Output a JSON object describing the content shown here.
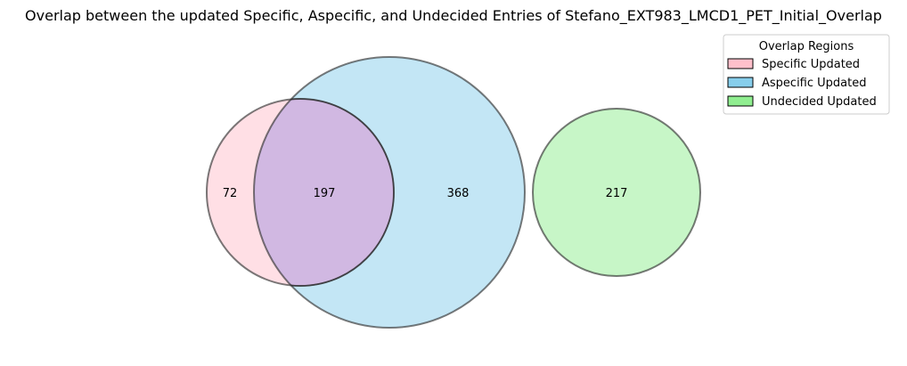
{
  "chart_data": {
    "type": "venn",
    "title": "Overlap between the updated Specific, Aspecific, and Undecided Entries of Stefano_EXT983_LMCD1_PET_Initial_Overlap",
    "legend": {
      "title": "Overlap Regions",
      "placement": "top-right",
      "entries": [
        {
          "label": "Specific Updated",
          "color": "#ffc0cb"
        },
        {
          "label": "Aspecific Updated",
          "color": "#87ceeb"
        },
        {
          "label": "Undecided Updated",
          "color": "#90ee90"
        }
      ]
    },
    "sets": [
      {
        "name": "Specific Updated",
        "color": "#ffc0cb"
      },
      {
        "name": "Aspecific Updated",
        "color": "#87ceeb"
      },
      {
        "name": "Undecided Updated",
        "color": "#90ee90"
      }
    ],
    "regions": [
      {
        "sets": [
          "Specific Updated"
        ],
        "value": 72
      },
      {
        "sets": [
          "Specific Updated",
          "Aspecific Updated"
        ],
        "value": 197
      },
      {
        "sets": [
          "Aspecific Updated"
        ],
        "value": 368
      },
      {
        "sets": [
          "Undecided Updated"
        ],
        "value": 217
      }
    ],
    "intersection_color": "#dda0dd"
  }
}
